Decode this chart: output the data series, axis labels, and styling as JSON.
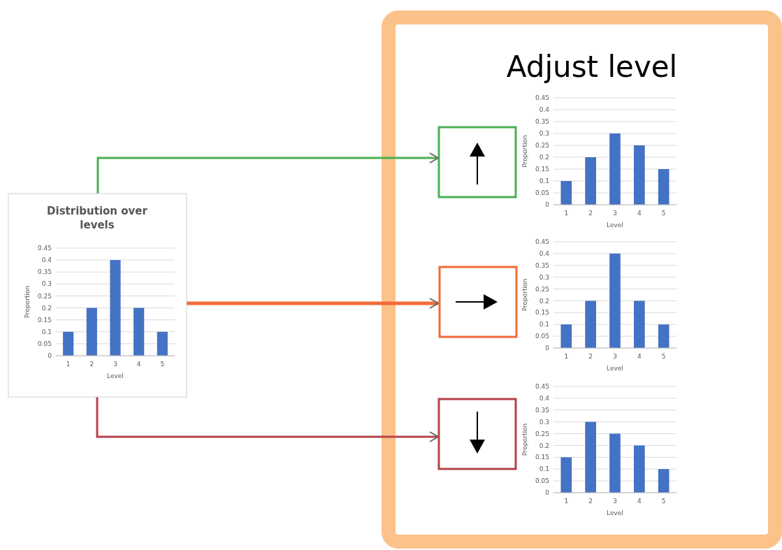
{
  "chart_data": [
    {
      "type": "bar",
      "title": "Distribution  over levels",
      "categories": [
        "1",
        "2",
        "3",
        "4",
        "5"
      ],
      "values": [
        0.1,
        0.2,
        0.4,
        0.2,
        0.1
      ],
      "color": "#4472c4",
      "xlabel": "Level",
      "ylabel": "Proportion",
      "ylim": [
        0,
        0.45
      ],
      "yticks": [
        0,
        0.05,
        0.1,
        0.15,
        0.2,
        0.25,
        0.3,
        0.35,
        0.4,
        0.45
      ],
      "grid": "y"
    },
    {
      "type": "bar",
      "title": "Adjust level",
      "categories": [
        "1",
        "2",
        "3",
        "4",
        "5"
      ],
      "values": [
        0.1,
        0.2,
        0.3,
        0.25,
        0.15
      ],
      "color": "#4472c4",
      "xlabel": "Level",
      "ylabel": "Proportion",
      "ylim": [
        0,
        0.45
      ],
      "yticks": [
        0,
        0.05,
        0.1,
        0.15,
        0.2,
        0.25,
        0.3,
        0.35,
        0.4,
        0.45
      ],
      "grid": "y"
    },
    {
      "type": "bar",
      "categories": [
        "1",
        "2",
        "3",
        "4",
        "5"
      ],
      "values": [
        0.1,
        0.2,
        0.4,
        0.2,
        0.1
      ],
      "color": "#4472c4",
      "xlabel": "Level",
      "ylabel": "Proportion",
      "ylim": [
        0,
        0.45
      ],
      "yticks": [
        0,
        0.05,
        0.1,
        0.15,
        0.2,
        0.25,
        0.3,
        0.35,
        0.4,
        0.45
      ],
      "grid": "y"
    },
    {
      "type": "bar",
      "categories": [
        "1",
        "2",
        "3",
        "4",
        "5"
      ],
      "values": [
        0.15,
        0.3,
        0.25,
        0.2,
        0.1
      ],
      "color": "#4472c4",
      "xlabel": "Level",
      "ylabel": "Proportion",
      "ylim": [
        0,
        0.45
      ],
      "yticks": [
        0,
        0.05,
        0.1,
        0.15,
        0.2,
        0.25,
        0.3,
        0.35,
        0.4,
        0.45
      ],
      "grid": "y"
    }
  ]
}
